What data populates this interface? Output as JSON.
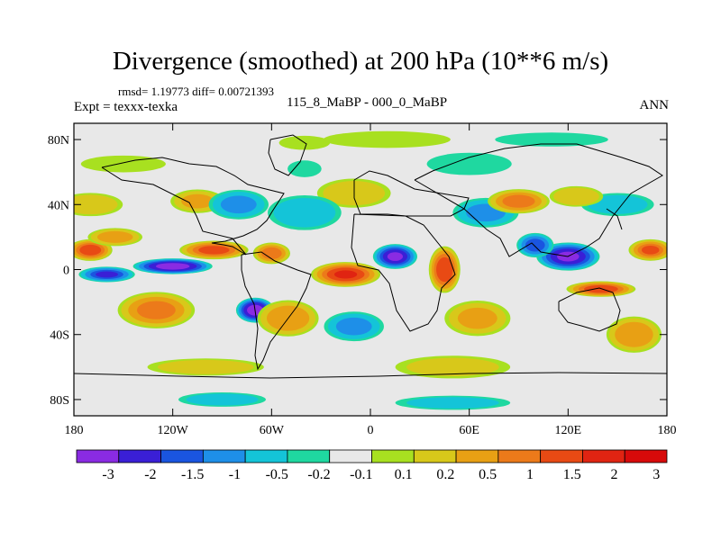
{
  "title": "Divergence (smoothed) at 200 hPa (10**6 m/s)",
  "stats": {
    "rmsd_label": "rmsd=",
    "rmsd": "1.19773",
    "diff_label": "diff=",
    "diff": "0.00721393"
  },
  "experiment": "Expt = texxx-texka",
  "case_difference": "115_8_MaBP - 000_0_MaBP",
  "season": "ANN",
  "chart_data": {
    "type": "heatmap",
    "title": "Divergence (smoothed) at 200 hPa (10**6 m/s)",
    "xlabel": "",
    "ylabel": "",
    "xlim": [
      -180,
      180
    ],
    "ylim": [
      -90,
      90
    ],
    "x_ticks": [
      {
        "value": -180,
        "label": "180"
      },
      {
        "value": -120,
        "label": "120W"
      },
      {
        "value": -60,
        "label": "60W"
      },
      {
        "value": 0,
        "label": "0"
      },
      {
        "value": 60,
        "label": "60E"
      },
      {
        "value": 120,
        "label": "120E"
      },
      {
        "value": 180,
        "label": "180"
      }
    ],
    "y_ticks": [
      {
        "value": 80,
        "label": "80N"
      },
      {
        "value": 40,
        "label": "40N"
      },
      {
        "value": 0,
        "label": "0"
      },
      {
        "value": -40,
        "label": "40S"
      },
      {
        "value": -80,
        "label": "80S"
      }
    ],
    "colorbar": {
      "levels": [
        "-3",
        "-2",
        "-1.5",
        "-1",
        "-0.5",
        "-0.2",
        "-0.1",
        "0.1",
        "0.2",
        "0.5",
        "1",
        "1.5",
        "2",
        "3"
      ],
      "colors": [
        "#8a2be2",
        "#3a1fd6",
        "#1a55e0",
        "#1e8fe8",
        "#14c4d8",
        "#1fd8a0",
        "#e8e8e8",
        "#a8e020",
        "#d8c81a",
        "#e8a014",
        "#ec7a1a",
        "#e84a14",
        "#e02412",
        "#d80a0a"
      ]
    },
    "anomaly_regions": [
      {
        "lon": 10,
        "lat": 80,
        "rlon": 45,
        "rlat": 6,
        "value": 0.3
      },
      {
        "lon": -40,
        "lat": 78,
        "rlon": 18,
        "rlat": 5,
        "value": 0.3
      },
      {
        "lon": 110,
        "lat": 80,
        "rlon": 40,
        "rlat": 5,
        "value": -0.3
      },
      {
        "lon": -40,
        "lat": 62,
        "rlon": 12,
        "rlat": 6,
        "value": -0.3
      },
      {
        "lon": 60,
        "lat": 65,
        "rlon": 30,
        "rlat": 8,
        "value": -0.3
      },
      {
        "lon": -150,
        "lat": 65,
        "rlon": 30,
        "rlat": 6,
        "value": 0.3
      },
      {
        "lon": -170,
        "lat": 40,
        "rlon": 22,
        "rlat": 8,
        "value": 0.6
      },
      {
        "lon": -105,
        "lat": 42,
        "rlon": 18,
        "rlat": 8,
        "value": 0.8
      },
      {
        "lon": -10,
        "lat": 47,
        "rlon": 25,
        "rlat": 10,
        "value": 0.6
      },
      {
        "lon": 70,
        "lat": 35,
        "rlon": 22,
        "rlat": 10,
        "value": -0.8
      },
      {
        "lon": -80,
        "lat": 40,
        "rlon": 20,
        "rlat": 10,
        "value": -0.8
      },
      {
        "lon": -40,
        "lat": 35,
        "rlon": 25,
        "rlat": 12,
        "value": -0.6
      },
      {
        "lon": 90,
        "lat": 42,
        "rlon": 20,
        "rlat": 8,
        "value": 1.5
      },
      {
        "lon": 150,
        "lat": 40,
        "rlon": 25,
        "rlat": 8,
        "value": -0.5
      },
      {
        "lon": 125,
        "lat": 45,
        "rlon": 18,
        "rlat": 7,
        "value": 0.7
      },
      {
        "lon": -170,
        "lat": 12,
        "rlon": 14,
        "rlat": 7,
        "value": 2.2
      },
      {
        "lon": 170,
        "lat": 12,
        "rlon": 14,
        "rlat": 7,
        "value": 1.8
      },
      {
        "lon": -155,
        "lat": 20,
        "rlon": 18,
        "rlat": 6,
        "value": 1.0
      },
      {
        "lon": -95,
        "lat": 12,
        "rlon": 22,
        "rlat": 6,
        "value": 2.0
      },
      {
        "lon": -120,
        "lat": 2,
        "rlon": 25,
        "rlat": 5,
        "value": -3.0
      },
      {
        "lon": -160,
        "lat": -3,
        "rlon": 18,
        "rlat": 5,
        "value": -1.8
      },
      {
        "lon": -15,
        "lat": -3,
        "rlon": 22,
        "rlat": 8,
        "value": 2.5
      },
      {
        "lon": -60,
        "lat": 10,
        "rlon": 12,
        "rlat": 7,
        "value": 1.6
      },
      {
        "lon": 15,
        "lat": 8,
        "rlon": 14,
        "rlat": 8,
        "value": -2.6
      },
      {
        "lon": 45,
        "lat": 0,
        "rlon": 10,
        "rlat": 15,
        "value": 2.4
      },
      {
        "lon": 120,
        "lat": 8,
        "rlon": 20,
        "rlat": 9,
        "value": -2.6
      },
      {
        "lon": 100,
        "lat": 15,
        "rlon": 12,
        "rlat": 8,
        "value": -1.5
      },
      {
        "lon": 140,
        "lat": -12,
        "rlon": 22,
        "rlat": 5,
        "value": 2.2
      },
      {
        "lon": -70,
        "lat": -25,
        "rlon": 12,
        "rlat": 8,
        "value": -3.0
      },
      {
        "lon": -50,
        "lat": -30,
        "rlon": 20,
        "rlat": 12,
        "value": 1.2
      },
      {
        "lon": -130,
        "lat": -25,
        "rlon": 25,
        "rlat": 12,
        "value": 1.4
      },
      {
        "lon": -10,
        "lat": -35,
        "rlon": 20,
        "rlat": 10,
        "value": -0.8
      },
      {
        "lon": 65,
        "lat": -30,
        "rlon": 22,
        "rlat": 12,
        "value": 0.8
      },
      {
        "lon": 160,
        "lat": -40,
        "rlon": 18,
        "rlat": 12,
        "value": 1.2
      },
      {
        "lon": -100,
        "lat": -60,
        "rlon": 40,
        "rlat": 6,
        "value": 0.5
      },
      {
        "lon": 50,
        "lat": -60,
        "rlon": 40,
        "rlat": 8,
        "value": 0.4
      },
      {
        "lon": -90,
        "lat": -80,
        "rlon": 30,
        "rlat": 5,
        "value": -0.5
      },
      {
        "lon": 50,
        "lat": -82,
        "rlon": 40,
        "rlat": 5,
        "value": -0.4
      }
    ]
  }
}
